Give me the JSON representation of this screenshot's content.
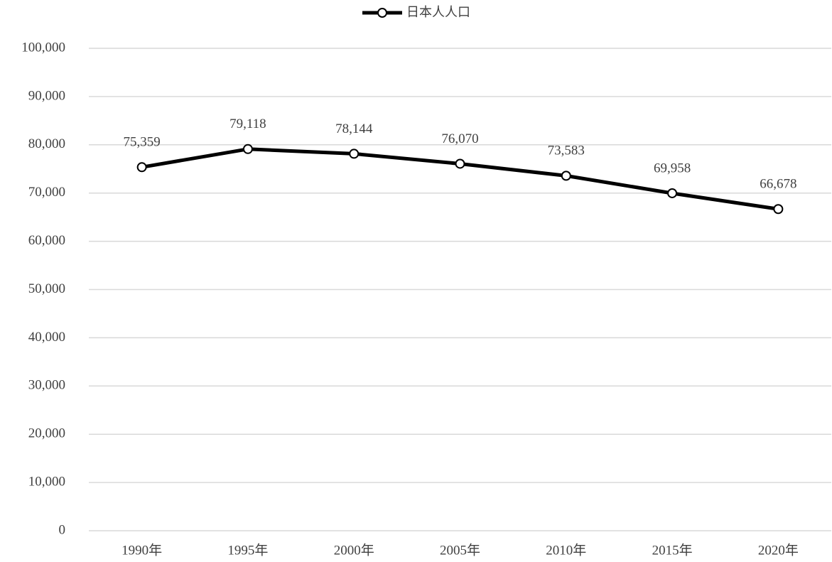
{
  "chart_data": {
    "type": "line",
    "categories": [
      "1990年",
      "1995年",
      "2000年",
      "2005年",
      "2010年",
      "2015年",
      "2020年"
    ],
    "series": [
      {
        "name": "日本人人口",
        "color": "#000000",
        "values": [
          75359,
          79118,
          78144,
          76070,
          73583,
          69958,
          66678
        ],
        "value_labels": [
          "75,359",
          "79,118",
          "78,144",
          "76,070",
          "73,583",
          "69,958",
          "66,678"
        ]
      }
    ],
    "ylim": [
      0,
      100000
    ],
    "yticks": [
      0,
      {
        "value": 10000,
        "label": "10,000"
      },
      {
        "value": 20000,
        "label": "20,000"
      },
      {
        "value": 30000,
        "label": "30,000"
      },
      {
        "value": 40000,
        "label": "40,000"
      },
      {
        "value": 50000,
        "label": "50,000"
      },
      {
        "value": 60000,
        "label": "60,000"
      },
      {
        "value": 70000,
        "label": "70,000"
      },
      {
        "value": 80000,
        "label": "80,000"
      },
      {
        "value": 90000,
        "label": "90,000"
      },
      {
        "value": 100000,
        "label": "100,000"
      }
    ],
    "grid": true,
    "legend": "top"
  }
}
